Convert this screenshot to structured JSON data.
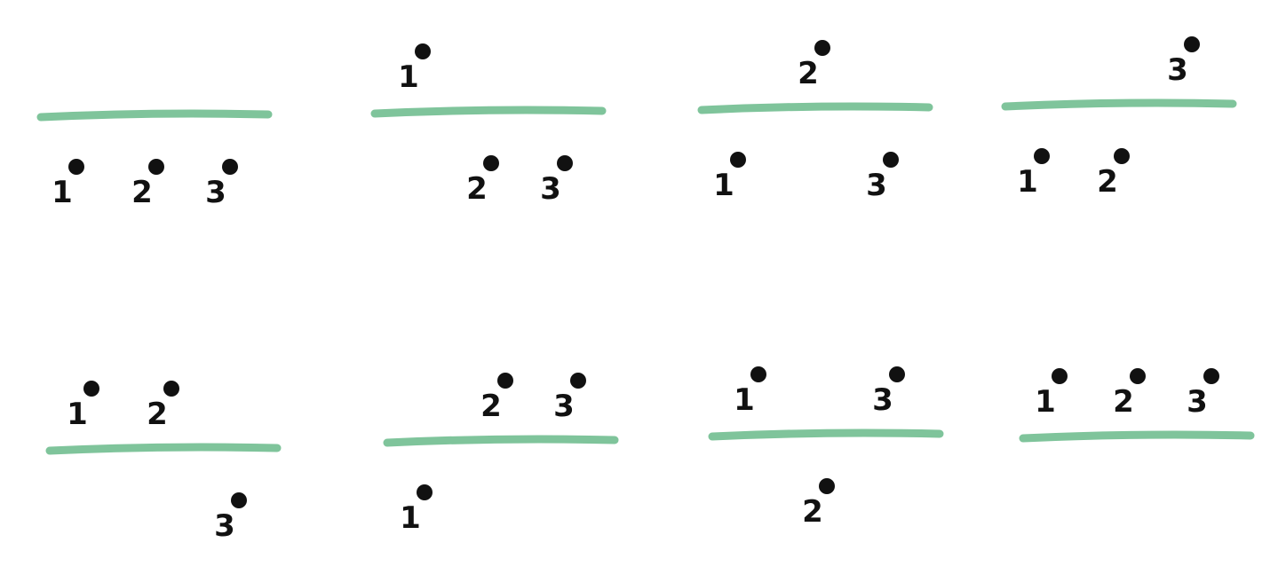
{
  "colors": {
    "line": "#7fc49b",
    "ink": "#111111",
    "background": "#ffffff"
  },
  "panels": [
    {
      "above": [],
      "below": [
        "1",
        "2",
        "3"
      ]
    },
    {
      "above": [
        "1"
      ],
      "below": [
        "2",
        "3"
      ]
    },
    {
      "above": [
        "2"
      ],
      "below": [
        "1",
        "3"
      ]
    },
    {
      "above": [
        "3"
      ],
      "below": [
        "1",
        "2"
      ]
    },
    {
      "above": [
        "1",
        "2"
      ],
      "below": [
        "3"
      ]
    },
    {
      "above": [
        "2",
        "3"
      ],
      "below": [
        "1"
      ]
    },
    {
      "above": [
        "1",
        "3"
      ],
      "below": [
        "2"
      ]
    },
    {
      "above": [
        "1",
        "2",
        "3"
      ],
      "below": []
    }
  ]
}
